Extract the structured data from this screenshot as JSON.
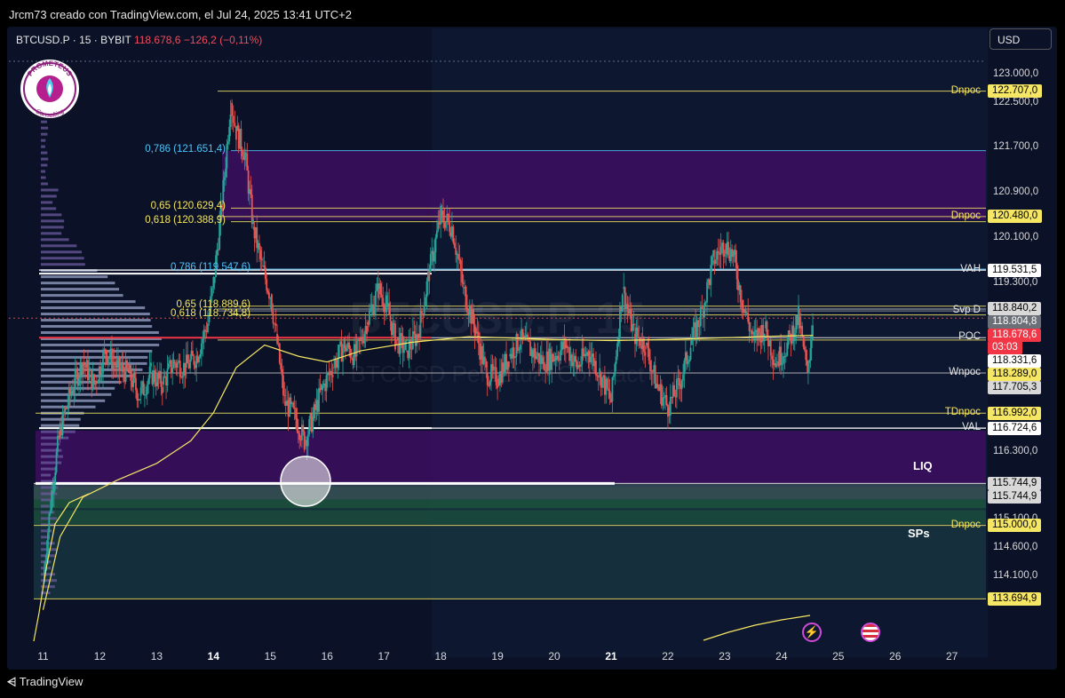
{
  "header": {
    "credit": "Jrcm73 creado con TradingView.com, el Jul 24, 2025 13:41 UTC+2",
    "symbol": "BTCUSD.P · 15 · BYBIT",
    "price": "118.678,6",
    "change": "−126,2 (−0,11%)",
    "currency_button": "USD"
  },
  "logo": {
    "top": "PROMETEUS",
    "bottom": "Consulting"
  },
  "watermark": {
    "main": "BTCUSD.P, 15",
    "sub": "BTCUSD Perpetual Contract"
  },
  "footer": {
    "brand": "TradingView"
  },
  "colors": {
    "background": "#0b1227",
    "up": "#26a69a",
    "down": "#ef5350",
    "level_yellow": "#f5e663",
    "zone_purple": "#3a0e5e",
    "fib_blue": "#4fc3f7",
    "poc_red": "#f23645"
  },
  "chart_data": {
    "type": "candlestick",
    "title": "",
    "x_ticks": [
      {
        "label": "11",
        "bold": false
      },
      {
        "label": "12",
        "bold": false
      },
      {
        "label": "13",
        "bold": false
      },
      {
        "label": "14",
        "bold": true
      },
      {
        "label": "15",
        "bold": false
      },
      {
        "label": "16",
        "bold": false
      },
      {
        "label": "17",
        "bold": false
      },
      {
        "label": "18",
        "bold": false
      },
      {
        "label": "19",
        "bold": false
      },
      {
        "label": "20",
        "bold": false
      },
      {
        "label": "21",
        "bold": true
      },
      {
        "label": "22",
        "bold": false
      },
      {
        "label": "23",
        "bold": false
      },
      {
        "label": "24",
        "bold": false
      },
      {
        "label": "25",
        "bold": false
      },
      {
        "label": "26",
        "bold": false
      },
      {
        "label": "27",
        "bold": false
      }
    ],
    "y_ticks": [
      "123.000,0",
      "122.500,0",
      "121.700,0",
      "120.900,0",
      "120.100,0",
      "119.300,0",
      "116.300,0",
      "115.100,0",
      "114.600,0",
      "114.100,0"
    ],
    "y_tick_values": [
      123000,
      122500,
      121700,
      120900,
      120100,
      119300,
      116300,
      115100,
      114600,
      114100
    ],
    "ylim": [
      113400,
      123500
    ],
    "levels": [
      {
        "name": "Dnpoc",
        "value": 122707,
        "label": "122.707,0",
        "style": "yellow-tag"
      },
      {
        "name": "Dnpoc",
        "value": 120480,
        "label": "120.480,0",
        "style": "yellow-tag"
      },
      {
        "name": "VAH",
        "value": 119531.5,
        "label": "119.531,5",
        "style": "white-tag"
      },
      {
        "name": "",
        "value": 118840.2,
        "label": "118.840,2",
        "style": "grey-tag"
      },
      {
        "name": "Svp D",
        "value": 118804.8,
        "label": "118.804,8",
        "style": "dark-tag"
      },
      {
        "name": "",
        "value": 118678.6,
        "label": "118.678,6",
        "style": "price-tag",
        "countdown": "03:03"
      },
      {
        "name": "POC",
        "value": 118331.6,
        "label": "118.331,6",
        "style": "white-tag"
      },
      {
        "name": "",
        "value": 118289,
        "label": "118.289,0",
        "style": "yellow-tag"
      },
      {
        "name": "Wnpoc",
        "value": 117705.3,
        "label": "117.705,3",
        "style": "grey-tag"
      },
      {
        "name": "TDnpoc",
        "value": 116992,
        "label": "116.992,0",
        "style": "yellow-tag"
      },
      {
        "name": "VAL",
        "value": 116724.6,
        "label": "116.724,6",
        "style": "white-tag"
      },
      {
        "name": "",
        "value": 115744.9,
        "label": "115.744,9",
        "style": "grey-tag"
      },
      {
        "name": "",
        "value": 115744.9,
        "label": "115.744,9",
        "style": "grey-tag"
      },
      {
        "name": "Dnpoc",
        "value": 115000,
        "label": "115.000,0",
        "style": "yellow-tag"
      },
      {
        "name": "",
        "value": 113694.9,
        "label": "113.694,9",
        "style": "yellow-tag"
      }
    ],
    "fib_labels": [
      {
        "text": "0,786 (121.651,4)",
        "value": 121651.4,
        "color": "blue"
      },
      {
        "text": "0,65 (120.629,4)",
        "value": 120629.4,
        "color": "yellow"
      },
      {
        "text": "0,618 (120.388,9)",
        "value": 120388.9,
        "color": "yellow"
      },
      {
        "text": "0,786 (119.547,6)",
        "value": 119547.6,
        "color": "blue"
      },
      {
        "text": "0,65 (118.889,6)",
        "value": 118889.6,
        "color": "yellow"
      },
      {
        "text": "0,618 (118.734,8)",
        "value": 118734.8,
        "color": "yellow"
      }
    ],
    "zones": [
      {
        "name": "",
        "from": 120420,
        "to": 121650,
        "color": "purple"
      },
      {
        "name": "LIQ",
        "from": 115744.9,
        "to": 116680,
        "color": "purple"
      },
      {
        "name": "SPs",
        "from": 113694.9,
        "to": 115744.9,
        "color": "teal"
      }
    ],
    "price_path": [
      [
        11.0,
        114000
      ],
      [
        11.15,
        115600
      ],
      [
        11.3,
        116700
      ],
      [
        11.5,
        117400
      ],
      [
        11.7,
        117900
      ],
      [
        11.9,
        117500
      ],
      [
        12.1,
        118100
      ],
      [
        12.3,
        117800
      ],
      [
        12.5,
        117700
      ],
      [
        12.7,
        117300
      ],
      [
        12.9,
        117700
      ],
      [
        13.1,
        117500
      ],
      [
        13.3,
        117900
      ],
      [
        13.5,
        117800
      ],
      [
        13.7,
        118000
      ],
      [
        13.9,
        118600
      ],
      [
        14.0,
        119300
      ],
      [
        14.15,
        120700
      ],
      [
        14.3,
        122500
      ],
      [
        14.4,
        122000
      ],
      [
        14.55,
        121600
      ],
      [
        14.7,
        120300
      ],
      [
        14.85,
        119600
      ],
      [
        15.0,
        119100
      ],
      [
        15.1,
        118400
      ],
      [
        15.25,
        117200
      ],
      [
        15.45,
        116900
      ],
      [
        15.6,
        116500
      ],
      [
        15.75,
        116900
      ],
      [
        15.9,
        117400
      ],
      [
        16.1,
        117800
      ],
      [
        16.3,
        118200
      ],
      [
        16.5,
        118000
      ],
      [
        16.7,
        118600
      ],
      [
        16.9,
        119200
      ],
      [
        17.05,
        118900
      ],
      [
        17.2,
        118300
      ],
      [
        17.4,
        118100
      ],
      [
        17.6,
        118400
      ],
      [
        17.8,
        119500
      ],
      [
        18.0,
        120500
      ],
      [
        18.2,
        120300
      ],
      [
        18.4,
        119200
      ],
      [
        18.6,
        118500
      ],
      [
        18.8,
        117700
      ],
      [
        19.0,
        117600
      ],
      [
        19.2,
        118000
      ],
      [
        19.4,
        118300
      ],
      [
        19.6,
        118100
      ],
      [
        19.8,
        117900
      ],
      [
        20.0,
        118000
      ],
      [
        20.2,
        118200
      ],
      [
        20.4,
        117800
      ],
      [
        20.6,
        118100
      ],
      [
        20.8,
        117700
      ],
      [
        21.0,
        117200
      ],
      [
        21.2,
        119200
      ],
      [
        21.4,
        118400
      ],
      [
        21.6,
        118200
      ],
      [
        21.8,
        117500
      ],
      [
        22.0,
        117100
      ],
      [
        22.2,
        117500
      ],
      [
        22.4,
        118200
      ],
      [
        22.6,
        118800
      ],
      [
        22.8,
        119700
      ],
      [
        23.0,
        120000
      ],
      [
        23.15,
        119800
      ],
      [
        23.3,
        119000
      ],
      [
        23.5,
        118300
      ],
      [
        23.7,
        118500
      ],
      [
        23.9,
        117900
      ],
      [
        24.1,
        118200
      ],
      [
        24.3,
        118700
      ],
      [
        24.45,
        117700
      ],
      [
        24.55,
        118600
      ]
    ],
    "volume_profile_poc": 118331.6,
    "annotations": [
      "LIQ",
      "SPs"
    ]
  }
}
